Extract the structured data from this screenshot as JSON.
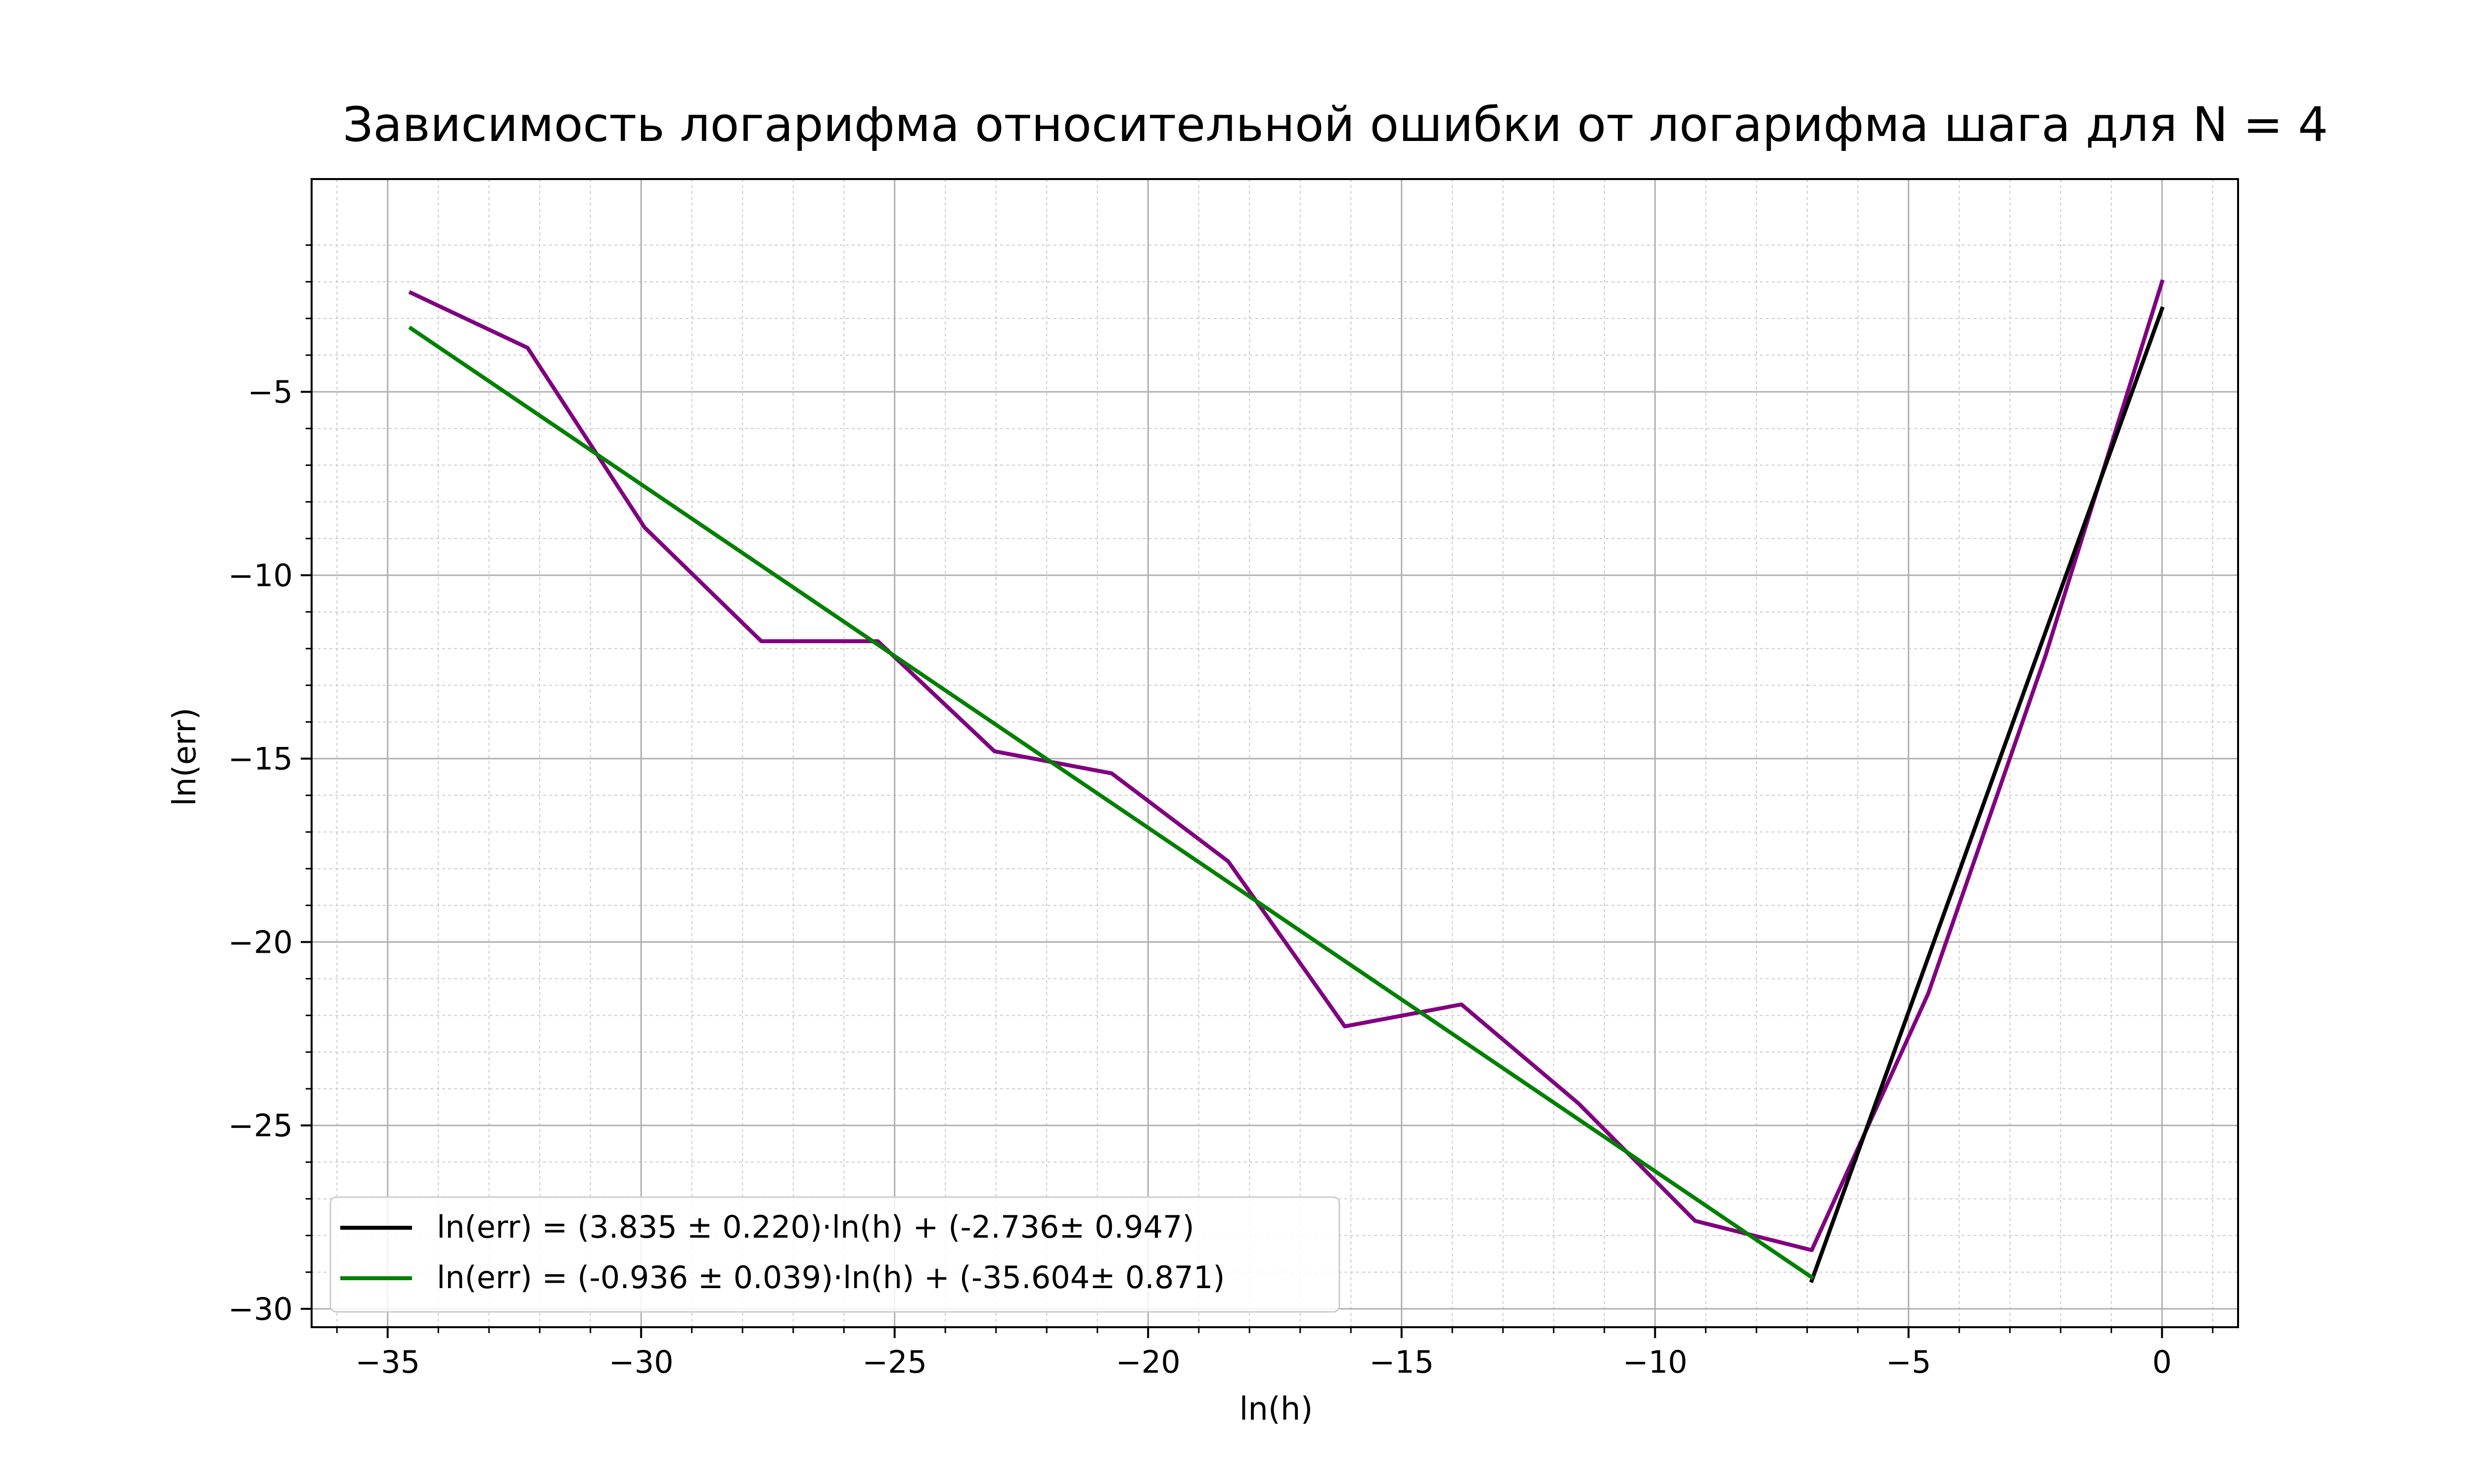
{
  "chart_data": {
    "type": "line",
    "title": "Зависимость логарифма относительной ошибки от логарифма шага для N = 4",
    "xlabel": "ln(h)",
    "ylabel": "ln(err)",
    "xlim": [
      -36.5,
      1.5
    ],
    "ylim": [
      -30.5,
      0.8
    ],
    "x_ticks": [
      -35,
      -30,
      -25,
      -20,
      -15,
      -10,
      -5,
      0
    ],
    "y_ticks": [
      -30,
      -25,
      -20,
      -15,
      -10,
      -5
    ],
    "x_tick_labels": [
      "−35",
      "−30",
      "−25",
      "−20",
      "−15",
      "−10",
      "−5",
      "0"
    ],
    "y_tick_labels": [
      "−30",
      "−25",
      "−20",
      "−15",
      "−10",
      "−5"
    ],
    "grid": "major and minor",
    "legend_position": "lower-left",
    "series": [
      {
        "key": "data",
        "color": "#800080",
        "x": [
          -34.54,
          -32.24,
          -29.93,
          -27.63,
          -25.33,
          -23.03,
          -20.72,
          -18.42,
          -16.12,
          -13.82,
          -11.51,
          -9.21,
          -6.91,
          -4.61,
          -2.3,
          0.0
        ],
        "y": [
          -2.3,
          -3.8,
          -8.7,
          -11.8,
          -11.8,
          -14.8,
          -15.4,
          -17.8,
          -22.3,
          -21.7,
          -24.4,
          -27.6,
          -28.4,
          -21.4,
          -12.2,
          -2.0
        ]
      },
      {
        "key": "fit1",
        "name": "ln(err) = (3.835 ± 0.220)·ln(h) + (-2.736± 0.947)",
        "color": "#000000",
        "x": [
          -6.91,
          0.0
        ],
        "y": [
          -29.23,
          -2.736
        ]
      },
      {
        "key": "fit2",
        "name": "ln(err) = (-0.936 ± 0.039)·ln(h) + (-35.604± 0.871)",
        "color": "#008000",
        "x": [
          -34.54,
          -6.91
        ],
        "y": [
          -3.27,
          -29.14
        ]
      }
    ]
  }
}
